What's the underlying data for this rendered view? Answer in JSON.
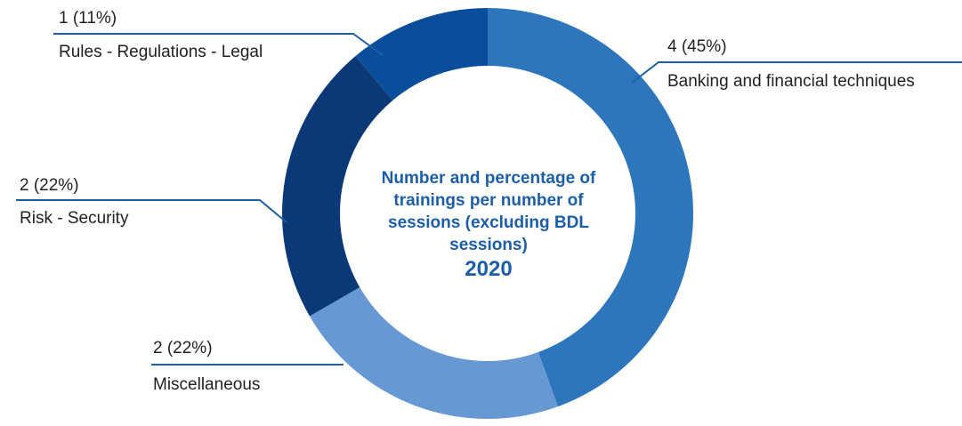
{
  "chart_data": {
    "type": "donut",
    "title": "Number and percentage of trainings per number of sessions (excluding BDL sessions)",
    "subtitle": "2020",
    "categories": [
      "Banking and financial techniques",
      "Miscellaneous",
      "Risk - Security",
      "Rules - Regulations - Legal"
    ],
    "values": [
      4,
      2,
      2,
      1
    ],
    "value_labels": [
      "4 (45%)",
      "2 (22%)",
      "2 (22%)",
      "1 (11%)"
    ],
    "colors": [
      "#2e76bc",
      "#6699d3",
      "#0b3876",
      "#0a4e9b"
    ]
  }
}
